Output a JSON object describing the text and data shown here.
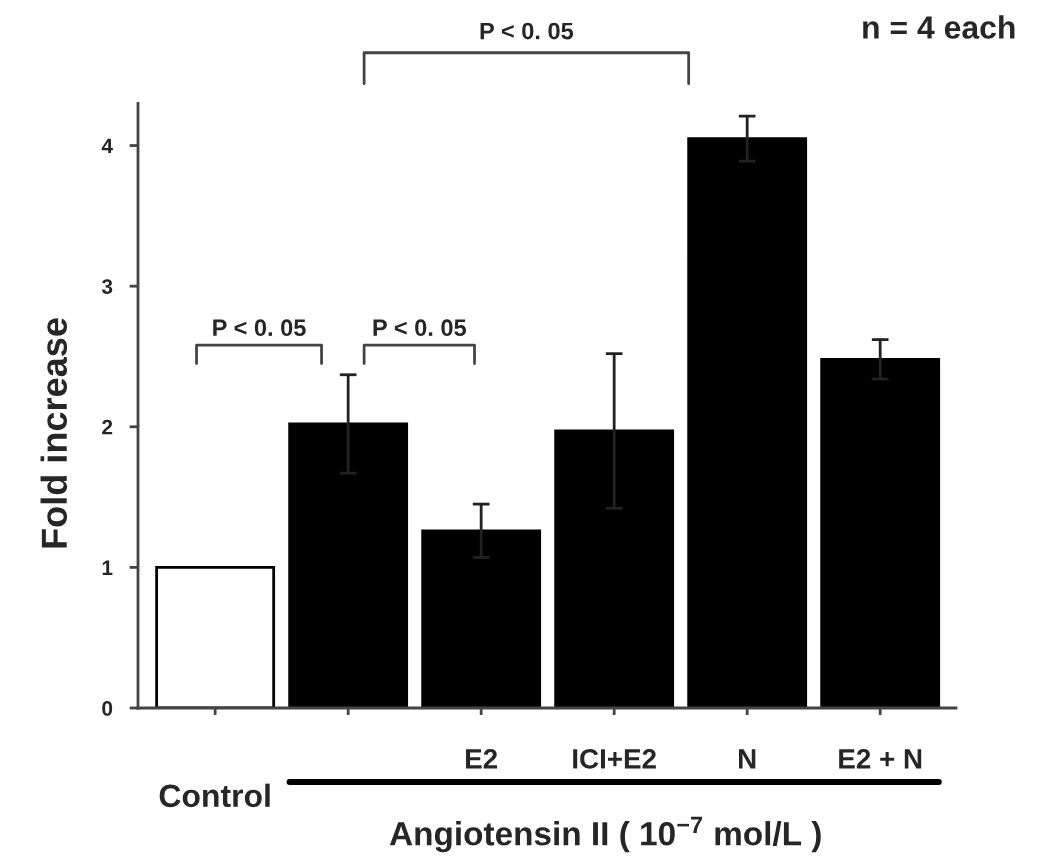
{
  "chart_data": {
    "type": "bar",
    "ylabel": "Fold increase",
    "xlabel": "Angiotensin II ( 10$^{−7}$ mol/L )",
    "categories": [
      "Control",
      null,
      "E2",
      "ICI+E2",
      "N",
      "E2 + N"
    ],
    "values": [
      1.0,
      2.02,
      1.26,
      1.97,
      4.05,
      2.48
    ],
    "colors": [
      "#ffffff",
      "#000000",
      "#000000",
      "#000000",
      "#000000",
      "#000000"
    ],
    "errors": [
      null,
      0.35,
      0.19,
      0.55,
      0.16,
      0.14
    ],
    "ylim": [
      0,
      4.3
    ],
    "yticks": [
      0,
      1,
      2,
      3,
      4
    ],
    "grid": false,
    "annotations": [
      "P < 0. 05",
      "P < 0. 05",
      "P < 0. 05",
      "n = 4 each"
    ]
  }
}
